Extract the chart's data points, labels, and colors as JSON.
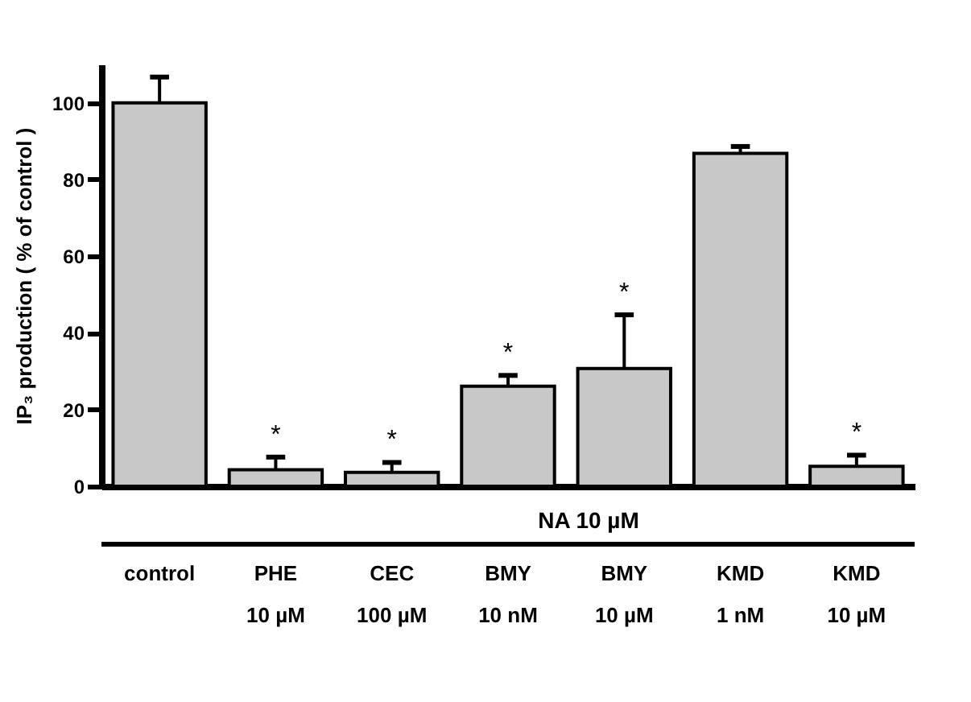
{
  "chart_data": {
    "type": "bar",
    "ylabel": "IP₃ production ( % of control )",
    "categories": [
      "control",
      "PHE\n10  µM",
      "CEC\n100 µM",
      "BMY\n10 nM",
      "BMY\n10 µM",
      "KMD\n1 nM",
      "KMD\n10 µM"
    ],
    "values": [
      100,
      4.3,
      3.6,
      26.1,
      30.7,
      86.8,
      5.2
    ],
    "errors": [
      [
        100,
        106.7
      ],
      [
        4.3,
        7.6
      ],
      [
        3.6,
        6.2
      ],
      [
        26.1,
        28.9
      ],
      [
        30.7,
        44.7
      ],
      [
        86.8,
        88.6
      ],
      [
        5.2,
        8.1
      ]
    ],
    "color": "#c8c8c8",
    "ylim": [
      0,
      110
    ],
    "yticks": [
      0,
      20,
      40,
      60,
      80,
      100
    ],
    "value_labels": [
      null,
      "*",
      "*",
      "*",
      "*",
      null,
      "*"
    ],
    "annotations": [
      "NA  10 µM"
    ]
  }
}
